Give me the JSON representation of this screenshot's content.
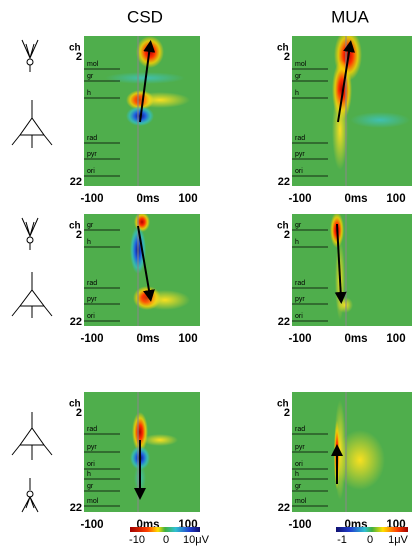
{
  "columns": [
    "CSD",
    "MUA"
  ],
  "channel_axis": {
    "label": "ch",
    "top": "2",
    "bottom": "22"
  },
  "time_ticks": [
    "-100",
    "0ms",
    "100"
  ],
  "rows": [
    {
      "csd_layers": [
        "mol",
        "gr",
        "h",
        "rad",
        "pyr",
        "ori"
      ],
      "mua_layers": [
        "mol",
        "gr",
        "h",
        "rad",
        "pyr",
        "ori"
      ]
    },
    {
      "csd_layers": [
        "gr",
        "h",
        "rad",
        "pyr",
        "ori"
      ],
      "mua_layers": [
        "gr",
        "h",
        "rad",
        "pyr",
        "ori"
      ]
    },
    {
      "csd_layers": [
        "rad",
        "pyr",
        "ori",
        "h",
        "gr",
        "mol"
      ],
      "mua_layers": [
        "rad",
        "pyr",
        "ori",
        "h",
        "gr",
        "mol"
      ]
    }
  ],
  "colorbars": [
    {
      "labels": [
        "-10",
        "0",
        "10μV"
      ]
    },
    {
      "labels": [
        "-1",
        "0",
        "1μV"
      ]
    }
  ]
}
